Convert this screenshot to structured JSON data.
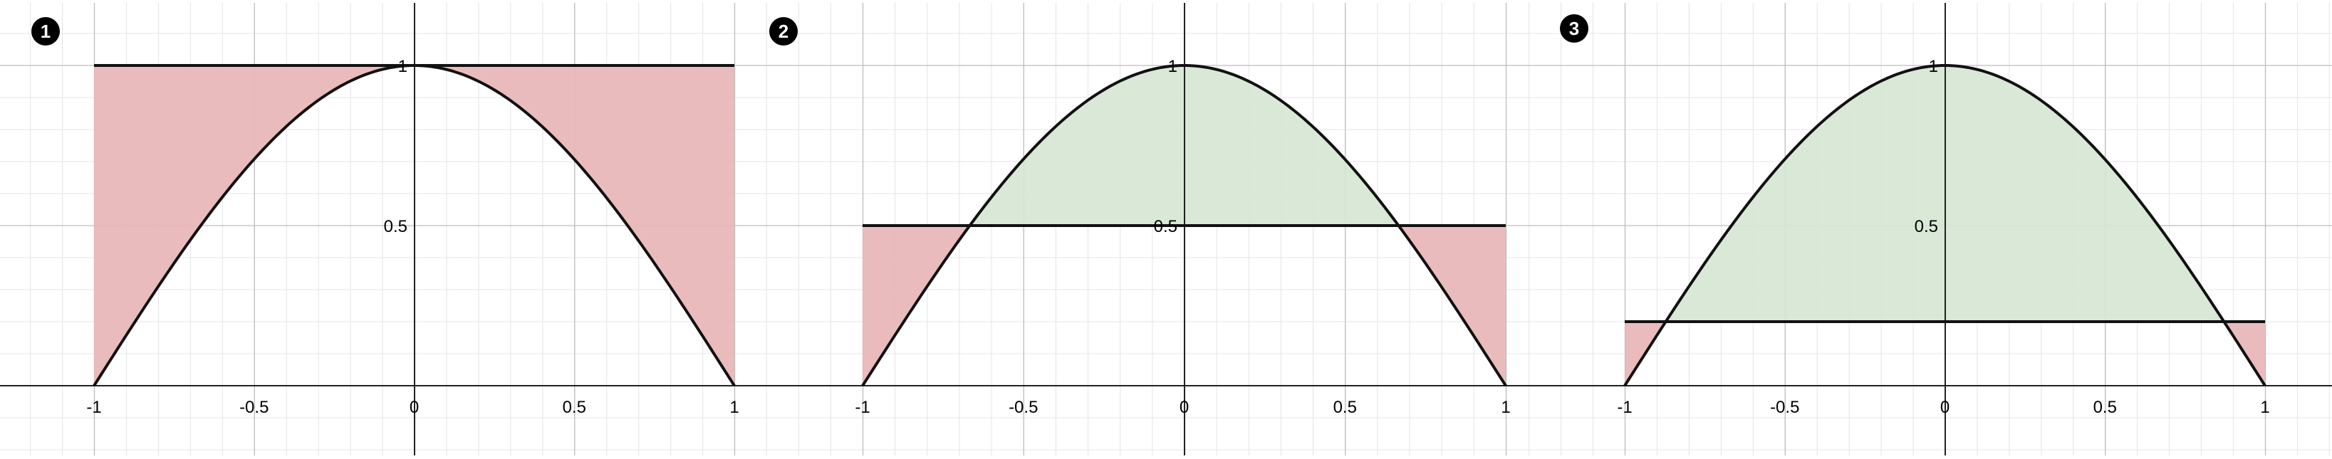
{
  "chart_data": [
    {
      "type": "area",
      "panel_label": "1",
      "title": "",
      "xlabel": "",
      "ylabel": "",
      "xlim": [
        -1,
        1
      ],
      "ylim": [
        0,
        1
      ],
      "x_ticks": [
        "-1",
        "-0.5",
        "0",
        "0.5",
        "1"
      ],
      "y_ticks": [
        "0.5",
        "1"
      ],
      "grid": true,
      "curve": {
        "x": [
          -1,
          -0.75,
          -0.5,
          -0.25,
          0,
          0.25,
          0.5,
          0.75,
          1
        ],
        "y": [
          0,
          0.383,
          0.707,
          0.924,
          1,
          0.924,
          0.707,
          0.383,
          0
        ]
      },
      "threshold": 1,
      "shading": {
        "above_curve_below_line": "#e8b4b6",
        "below_curve_above_line": "#d5e5d3"
      }
    },
    {
      "type": "area",
      "panel_label": "2",
      "title": "",
      "xlabel": "",
      "ylabel": "",
      "xlim": [
        -1,
        1
      ],
      "ylim": [
        0,
        1
      ],
      "x_ticks": [
        "-1",
        "-0.5",
        "0",
        "0.5",
        "1"
      ],
      "y_ticks": [
        "0.5",
        "1"
      ],
      "grid": true,
      "curve": {
        "x": [
          -1,
          -0.75,
          -0.5,
          -0.25,
          0,
          0.25,
          0.5,
          0.75,
          1
        ],
        "y": [
          0,
          0.383,
          0.707,
          0.924,
          1,
          0.924,
          0.707,
          0.383,
          0
        ]
      },
      "threshold": 0.5,
      "shading": {
        "above_curve_below_line": "#e8b4b6",
        "below_curve_above_line": "#d5e5d3"
      }
    },
    {
      "type": "area",
      "panel_label": "3",
      "title": "",
      "xlabel": "",
      "ylabel": "",
      "xlim": [
        -1,
        1
      ],
      "ylim": [
        0,
        1
      ],
      "x_ticks": [
        "-1",
        "-0.5",
        "0",
        "0.5",
        "1"
      ],
      "y_ticks": [
        "0.5",
        "1"
      ],
      "grid": true,
      "curve": {
        "x": [
          -1,
          -0.75,
          -0.5,
          -0.25,
          0,
          0.25,
          0.5,
          0.75,
          1
        ],
        "y": [
          0,
          0.383,
          0.707,
          0.924,
          1,
          0.924,
          0.707,
          0.383,
          0
        ]
      },
      "threshold": 0.2,
      "shading": {
        "above_curve_below_line": "#e8b4b6",
        "below_curve_above_line": "#d5e5d3"
      }
    }
  ]
}
